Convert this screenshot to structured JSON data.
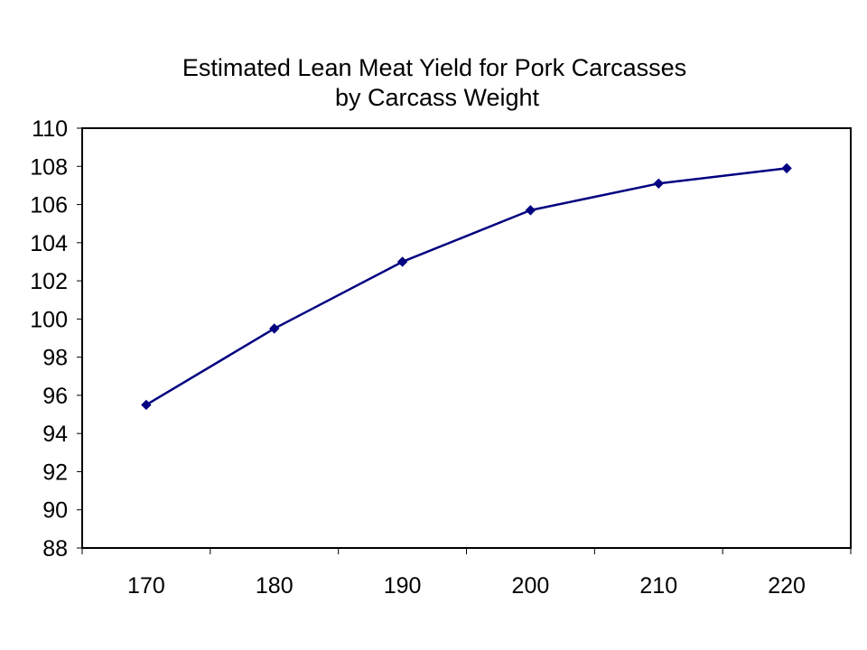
{
  "chart_data": {
    "type": "line",
    "title_lines": [
      "Estimated Lean Meat Yield for Pork Carcasses",
      "by Carcass Weight"
    ],
    "xlabel": "",
    "ylabel": "",
    "categories": [
      "170",
      "180",
      "190",
      "200",
      "210",
      "220"
    ],
    "series": [
      {
        "values": [
          95.5,
          99.5,
          103.0,
          105.7,
          107.1,
          107.9
        ]
      }
    ],
    "ylim": [
      88,
      110
    ],
    "yticks": [
      "88",
      "90",
      "92",
      "94",
      "96",
      "98",
      "100",
      "102",
      "104",
      "106",
      "108",
      "110"
    ],
    "grid": false,
    "legend": "none",
    "line_color": "#000080",
    "marker": "diamond"
  }
}
